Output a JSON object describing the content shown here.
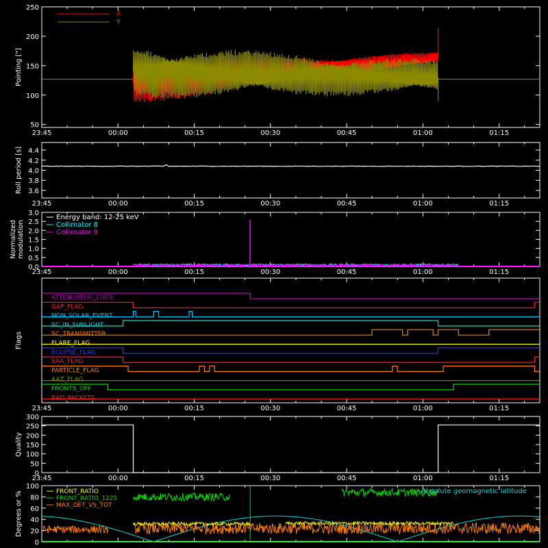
{
  "time_labels": [
    "23:45",
    "00:00",
    "00:15",
    "00:30",
    "00:45",
    "01:00",
    "01:15"
  ],
  "chart_data": [
    {
      "id": "pointing",
      "type": "line",
      "ylabel": "Pointing [\"]",
      "ylim": [
        45,
        250
      ],
      "yticks": [
        "50",
        "100",
        "150",
        "200",
        "250"
      ],
      "legend": [
        {
          "label": "X",
          "color": "#ff0000"
        },
        {
          "label": "Y",
          "color": "#8c8a00"
        }
      ],
      "baseline": 127,
      "active_window": [
        "00:03",
        "01:03"
      ],
      "x_center": {
        "start": 120,
        "end": 163
      },
      "y_center": {
        "start": 140,
        "end": 130
      },
      "x_spike": 215,
      "y_spike_low": 90
    },
    {
      "id": "roll",
      "type": "line",
      "ylabel": "Roll period [s]",
      "ylim": [
        3.45,
        4.55
      ],
      "yticks": [
        "3.6",
        "3.8",
        "4.0",
        "4.2",
        "4.4"
      ],
      "value": 4.08,
      "color": "#ffffff"
    },
    {
      "id": "modulation",
      "type": "line",
      "ylabel": "Normalized modulation",
      "ylim": [
        0,
        3.0
      ],
      "yticks": [
        "0.0",
        "0.5",
        "1.0",
        "1.5",
        "2.0",
        "2.5",
        "3.0"
      ],
      "legend": [
        {
          "label": "Energy band: 12-25 keV",
          "color": "#ffffff"
        },
        {
          "label": "Collimator 8",
          "color": "#00ffff"
        },
        {
          "label": "Collimator 9",
          "color": "#ff00ff"
        }
      ],
      "spike": {
        "time": "00:26",
        "value": 2.6
      }
    },
    {
      "id": "flags",
      "type": "line",
      "ylabel": "Flags",
      "flags": [
        {
          "label": "ATTENUATOR_STATE",
          "color": "#c000c0",
          "segments": [
            [
              "23:45",
              "00:26",
              1
            ],
            [
              "00:26",
              "01:23",
              0
            ]
          ]
        },
        {
          "label": "GAP_FLAG",
          "color": "#ff2020",
          "segments": [
            [
              "23:45",
              "00:03",
              1
            ],
            [
              "00:03",
              "01:22",
              0
            ],
            [
              "01:22",
              "01:23",
              1
            ]
          ]
        },
        {
          "label": "NON_SOLAR_EVENT",
          "color": "#00c8ff",
          "segments": [
            [
              "23:45",
              "00:03",
              0
            ],
            [
              "00:03",
              "00:03.5",
              1
            ],
            [
              "00:03.5",
              "00:07",
              0
            ],
            [
              "00:07",
              "00:08",
              1
            ],
            [
              "00:08",
              "00:14",
              0
            ],
            [
              "00:14",
              "00:14.6",
              1
            ],
            [
              "00:14.6",
              "01:23",
              0
            ]
          ]
        },
        {
          "label": "SC_IN_SUNLIGHT",
          "color": "#00e0e0",
          "segments": [
            [
              "23:45",
              "00:01",
              0
            ],
            [
              "00:01",
              "01:03",
              1
            ],
            [
              "01:03",
              "01:23",
              0
            ]
          ]
        },
        {
          "label": "SC_TRANSMITTER",
          "color": "#ff8000",
          "segments": [
            [
              "23:45",
              "00:50",
              0
            ],
            [
              "00:50",
              "00:56",
              1
            ],
            [
              "00:56",
              "00:57",
              0
            ],
            [
              "00:57",
              "01:02",
              1
            ],
            [
              "01:02",
              "01:03",
              0
            ],
            [
              "01:03",
              "01:07",
              1
            ],
            [
              "01:07",
              "01:13",
              0
            ],
            [
              "01:13",
              "01:23",
              1
            ]
          ]
        },
        {
          "label": "FLARE_FLAG",
          "color": "#ffff00",
          "segments": [
            [
              "23:45",
              "01:23",
              0
            ]
          ]
        },
        {
          "label": "ECLIPSE_FLAG",
          "color": "#2040ff",
          "segments": [
            [
              "23:45",
              "00:01",
              1
            ],
            [
              "00:01",
              "01:03",
              0
            ],
            [
              "01:03",
              "01:23",
              1
            ]
          ]
        },
        {
          "label": "SAA_FLAG",
          "color": "#ff2020",
          "segments": [
            [
              "23:45",
              "00:01",
              1
            ],
            [
              "00:01",
              "01:22",
              0
            ],
            [
              "01:22",
              "01:23",
              1
            ]
          ]
        },
        {
          "label": "PARTICLE_FLAG",
          "color": "#ff8000",
          "segments": [
            [
              "23:45",
              "00:02",
              1
            ],
            [
              "00:02",
              "00:16",
              0
            ],
            [
              "00:16",
              "00:17",
              1
            ],
            [
              "00:17",
              "00:18",
              0
            ],
            [
              "00:18",
              "00:19",
              1
            ],
            [
              "00:19",
              "00:54",
              0
            ],
            [
              "00:54",
              "00:55",
              1
            ],
            [
              "00:55",
              "01:04",
              0
            ],
            [
              "01:04",
              "01:22",
              1
            ],
            [
              "01:22",
              "01:23",
              0
            ]
          ]
        },
        {
          "label": "AAZ_FLAG",
          "color": "#8c8a00",
          "segments": [
            [
              "23:45",
              "01:23",
              0
            ]
          ]
        },
        {
          "label": "FRONTS_OFF",
          "color": "#00e000",
          "segments": [
            [
              "23:45",
              "23:58",
              1
            ],
            [
              "23:58",
              "01:06",
              0
            ],
            [
              "01:06",
              "01:23",
              1
            ]
          ]
        },
        {
          "label": "BAD_PACKETS",
          "color": "#ff2020",
          "segments": [
            [
              "23:45",
              "01:23",
              0
            ]
          ]
        }
      ]
    },
    {
      "id": "quality",
      "type": "line",
      "ylabel": "Quality",
      "ylim": [
        0,
        300
      ],
      "yticks": [
        "0",
        "50",
        "100",
        "150",
        "200",
        "250",
        "300"
      ],
      "segments": [
        [
          "23:45",
          "00:03",
          255
        ],
        [
          "00:03",
          "01:03",
          0
        ],
        [
          "01:03",
          "01:23",
          255
        ]
      ],
      "color": "#ffffff"
    },
    {
      "id": "ratios",
      "type": "line",
      "ylabel": "Degrees or %",
      "ylim": [
        0,
        100
      ],
      "yticks": [
        "0",
        "20",
        "40",
        "60",
        "80",
        "100"
      ],
      "legend": [
        {
          "label": "FRONT_RATIO",
          "color": "#ffff00"
        },
        {
          "label": "FRONT_RATIO_1225",
          "color": "#00e000"
        },
        {
          "label": "MAX_DET_VS_TOT",
          "color": "#ff8000"
        }
      ],
      "extra_label": {
        "label": "Absolute geomagnetic latitude",
        "color": "#00e0e0"
      }
    }
  ]
}
